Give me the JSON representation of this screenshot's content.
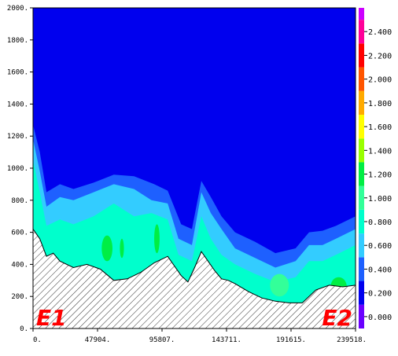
{
  "chart_data": {
    "type": "contour",
    "title": "",
    "xlabel": "",
    "ylabel": "",
    "xlim": [
      0,
      239518
    ],
    "ylim": [
      0,
      2000
    ],
    "x_ticks": [
      "0.",
      "47904.",
      "95807.",
      "143711.",
      "191615.",
      "239518."
    ],
    "x_tick_values": [
      0,
      47904,
      95807,
      143711,
      191615,
      239518
    ],
    "y_ticks": [
      "0.",
      "200.",
      "400.",
      "600.",
      "800.",
      "1000.",
      "1200.",
      "1400.",
      "1600.",
      "1800.",
      "2000."
    ],
    "y_tick_values": [
      0,
      200,
      400,
      600,
      800,
      1000,
      1200,
      1400,
      1600,
      1800,
      2000
    ],
    "end_labels": {
      "left": "E1",
      "right": "E2"
    },
    "colorbar": {
      "labels": [
        "2.400",
        "2.200",
        "2.000",
        "1.800",
        "1.600",
        "1.400",
        "1.200",
        "1.000",
        "0.800",
        "0.600",
        "0.400",
        "0.200",
        "0.000"
      ],
      "label_values": [
        2.4,
        2.2,
        2.0,
        1.8,
        1.6,
        1.4,
        1.2,
        1.0,
        0.8,
        0.6,
        0.4,
        0.2,
        0.0
      ],
      "range": [
        -0.1,
        2.6
      ],
      "levels": [
        {
          "from": -0.1,
          "to": 0.1,
          "color": "#6a00ff"
        },
        {
          "from": 0.1,
          "to": 0.3,
          "color": "#0000ee"
        },
        {
          "from": 0.3,
          "to": 0.5,
          "color": "#1e60ff"
        },
        {
          "from": 0.5,
          "to": 0.7,
          "color": "#33ccff"
        },
        {
          "from": 0.7,
          "to": 0.9,
          "color": "#00ffcc"
        },
        {
          "from": 0.9,
          "to": 1.1,
          "color": "#33ff99"
        },
        {
          "from": 1.1,
          "to": 1.3,
          "color": "#00ee44"
        },
        {
          "from": 1.3,
          "to": 1.5,
          "color": "#99ff00"
        },
        {
          "from": 1.5,
          "to": 1.7,
          "color": "#ffff00"
        },
        {
          "from": 1.7,
          "to": 1.9,
          "color": "#ffaa00"
        },
        {
          "from": 1.9,
          "to": 2.1,
          "color": "#ff5500"
        },
        {
          "from": 2.1,
          "to": 2.3,
          "color": "#ff0000"
        },
        {
          "from": 2.3,
          "to": 2.5,
          "color": "#ff0099"
        },
        {
          "from": 2.5,
          "to": 2.6,
          "color": "#cc00ff"
        }
      ]
    },
    "terrain": {
      "x": [
        0,
        5000,
        10000,
        15000,
        20000,
        30000,
        40000,
        50000,
        60000,
        70000,
        80000,
        90000,
        100000,
        110000,
        115000,
        120000,
        125000,
        130000,
        135000,
        140000,
        145000,
        150000,
        160000,
        170000,
        180000,
        190000,
        200000,
        210000,
        220000,
        230000,
        239518
      ],
      "elevation": [
        620,
        560,
        450,
        470,
        420,
        380,
        400,
        370,
        300,
        310,
        350,
        410,
        450,
        330,
        290,
        380,
        480,
        420,
        360,
        310,
        300,
        280,
        230,
        190,
        170,
        160,
        160,
        240,
        270,
        260,
        270
      ]
    },
    "contours": [
      {
        "level_color": "#1e60ff",
        "top": [
          {
            "x": 0,
            "y": 1270
          },
          {
            "x": 5000,
            "y": 1100
          },
          {
            "x": 10000,
            "y": 850
          },
          {
            "x": 20000,
            "y": 900
          },
          {
            "x": 30000,
            "y": 870
          },
          {
            "x": 45000,
            "y": 910
          },
          {
            "x": 60000,
            "y": 960
          },
          {
            "x": 75000,
            "y": 950
          },
          {
            "x": 90000,
            "y": 900
          },
          {
            "x": 100000,
            "y": 860
          },
          {
            "x": 110000,
            "y": 650
          },
          {
            "x": 118000,
            "y": 620
          },
          {
            "x": 125000,
            "y": 920
          },
          {
            "x": 132000,
            "y": 820
          },
          {
            "x": 140000,
            "y": 700
          },
          {
            "x": 150000,
            "y": 600
          },
          {
            "x": 165000,
            "y": 540
          },
          {
            "x": 180000,
            "y": 470
          },
          {
            "x": 195000,
            "y": 500
          },
          {
            "x": 205000,
            "y": 600
          },
          {
            "x": 215000,
            "y": 610
          },
          {
            "x": 225000,
            "y": 640
          },
          {
            "x": 239518,
            "y": 700
          }
        ]
      },
      {
        "level_color": "#33ccff",
        "top": [
          {
            "x": 0,
            "y": 1180
          },
          {
            "x": 5000,
            "y": 980
          },
          {
            "x": 10000,
            "y": 760
          },
          {
            "x": 20000,
            "y": 820
          },
          {
            "x": 30000,
            "y": 800
          },
          {
            "x": 45000,
            "y": 850
          },
          {
            "x": 60000,
            "y": 900
          },
          {
            "x": 75000,
            "y": 870
          },
          {
            "x": 88000,
            "y": 800
          },
          {
            "x": 100000,
            "y": 780
          },
          {
            "x": 108000,
            "y": 560
          },
          {
            "x": 118000,
            "y": 520
          },
          {
            "x": 125000,
            "y": 850
          },
          {
            "x": 132000,
            "y": 720
          },
          {
            "x": 140000,
            "y": 620
          },
          {
            "x": 150000,
            "y": 500
          },
          {
            "x": 165000,
            "y": 440
          },
          {
            "x": 180000,
            "y": 380
          },
          {
            "x": 195000,
            "y": 420
          },
          {
            "x": 205000,
            "y": 520
          },
          {
            "x": 215000,
            "y": 520
          },
          {
            "x": 225000,
            "y": 560
          },
          {
            "x": 239518,
            "y": 620
          }
        ]
      },
      {
        "level_color": "#00ffcc",
        "top": [
          {
            "x": 0,
            "y": 1050
          },
          {
            "x": 5000,
            "y": 850
          },
          {
            "x": 10000,
            "y": 640
          },
          {
            "x": 20000,
            "y": 680
          },
          {
            "x": 30000,
            "y": 650
          },
          {
            "x": 45000,
            "y": 700
          },
          {
            "x": 60000,
            "y": 780
          },
          {
            "x": 75000,
            "y": 700
          },
          {
            "x": 88000,
            "y": 720
          },
          {
            "x": 100000,
            "y": 680
          },
          {
            "x": 108000,
            "y": 460
          },
          {
            "x": 118000,
            "y": 420
          },
          {
            "x": 125000,
            "y": 700
          },
          {
            "x": 132000,
            "y": 560
          },
          {
            "x": 140000,
            "y": 460
          },
          {
            "x": 150000,
            "y": 400
          },
          {
            "x": 165000,
            "y": 340
          },
          {
            "x": 180000,
            "y": 290
          },
          {
            "x": 195000,
            "y": 320
          },
          {
            "x": 205000,
            "y": 420
          },
          {
            "x": 215000,
            "y": 420
          },
          {
            "x": 225000,
            "y": 460
          },
          {
            "x": 239518,
            "y": 520
          }
        ]
      }
    ],
    "hotspots": [
      {
        "x": 55000,
        "y": 500,
        "rx": 4000,
        "ry": 80,
        "color": "#00ee44"
      },
      {
        "x": 66000,
        "y": 500,
        "rx": 1500,
        "ry": 60,
        "color": "#00ee44"
      },
      {
        "x": 92000,
        "y": 560,
        "rx": 2000,
        "ry": 90,
        "color": "#00ee44"
      },
      {
        "x": 183000,
        "y": 270,
        "rx": 7000,
        "ry": 70,
        "color": "#33ff99"
      },
      {
        "x": 227000,
        "y": 260,
        "rx": 6000,
        "ry": 60,
        "color": "#00ee44"
      }
    ]
  }
}
